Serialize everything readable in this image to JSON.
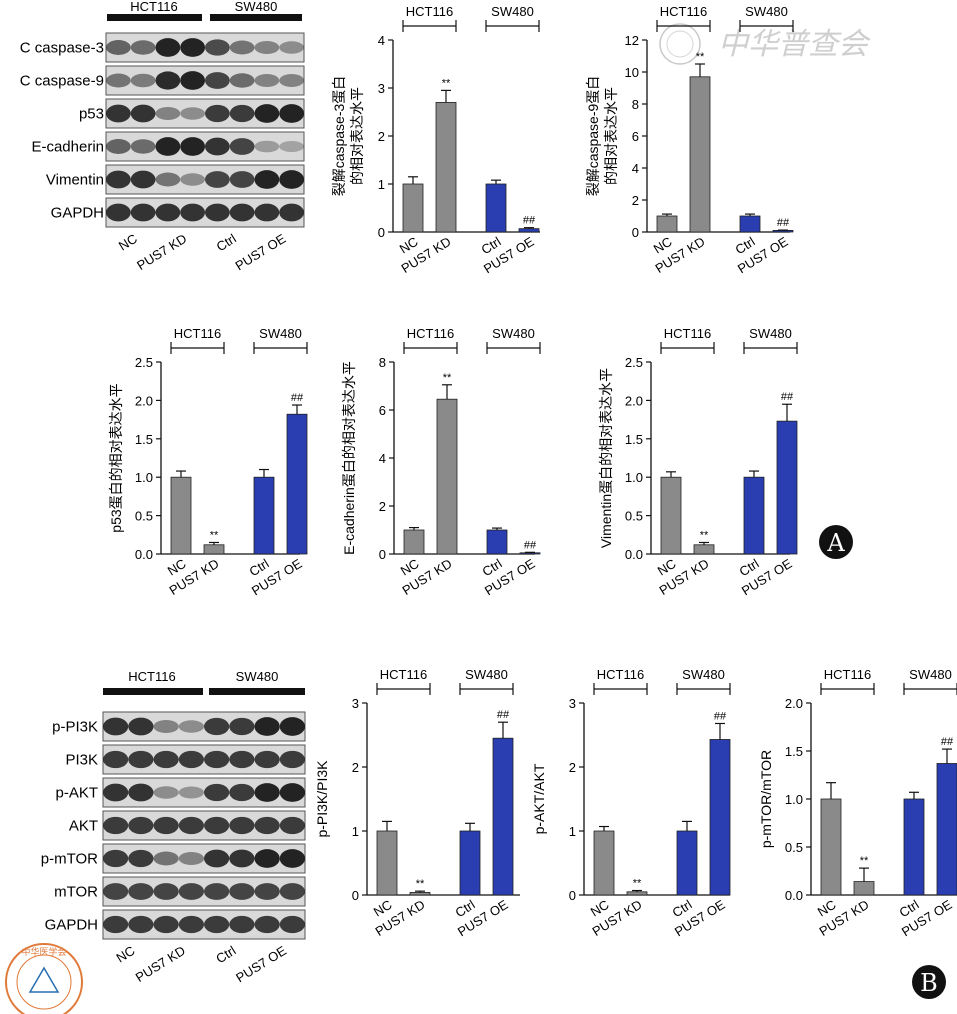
{
  "watermark": "中华普查会",
  "seal_text": "中华医学会",
  "panel_a": {
    "badge": "A",
    "blot": {
      "cell_lines": [
        "HCT116",
        "SW480"
      ],
      "rows": [
        "C caspase-3",
        "C caspase-9",
        "p53",
        "E-cadherin",
        "Vimentin",
        "GAPDH"
      ],
      "lane_labels": [
        "NC",
        "PUS7 KD",
        "Ctrl",
        "PUS7 OE"
      ]
    }
  },
  "panel_b": {
    "badge": "B",
    "blot": {
      "cell_lines": [
        "HCT116",
        "SW480"
      ],
      "rows": [
        "p-PI3K",
        "PI3K",
        "p-AKT",
        "AKT",
        "p-mTOR",
        "mTOR",
        "GAPDH"
      ],
      "lane_labels": [
        "NC",
        "PUS7 KD",
        "Ctrl",
        "PUS7 OE"
      ]
    }
  },
  "colors": {
    "control_bar": "#8a8a8a",
    "sw480_bar": "#2a3eb1"
  },
  "chart_data": [
    {
      "type": "bar",
      "ylabel": "裂解caspase-3蛋白\n的相对表达水平",
      "categories": [
        "NC",
        "PUS7 KD",
        "Ctrl",
        "PUS7 OE"
      ],
      "groups": [
        "HCT116",
        "SW480"
      ],
      "values": [
        1.0,
        2.7,
        1.0,
        0.07
      ],
      "errors": [
        0.15,
        0.25,
        0.08,
        0.02
      ],
      "significance": [
        "",
        "**",
        "",
        "##"
      ],
      "ylim": [
        0,
        4
      ],
      "yticks": [
        "0",
        "1",
        "2",
        "3",
        "4"
      ]
    },
    {
      "type": "bar",
      "ylabel": "裂解caspase-9蛋白\n的相对表达水平",
      "categories": [
        "NC",
        "PUS7 KD",
        "Ctrl",
        "PUS7 OE"
      ],
      "groups": [
        "HCT116",
        "SW480"
      ],
      "values": [
        1.0,
        9.7,
        1.0,
        0.1
      ],
      "errors": [
        0.12,
        0.8,
        0.12,
        0.02
      ],
      "significance": [
        "",
        "**",
        "",
        "##"
      ],
      "ylim": [
        0,
        12
      ],
      "yticks": [
        "0",
        "2",
        "4",
        "6",
        "8",
        "10",
        "12"
      ]
    },
    {
      "type": "bar",
      "ylabel": "p53蛋白的相对表达水平",
      "categories": [
        "NC",
        "PUS7 KD",
        "Ctrl",
        "PUS7 OE"
      ],
      "groups": [
        "HCT116",
        "SW480"
      ],
      "values": [
        1.0,
        0.12,
        1.0,
        1.82
      ],
      "errors": [
        0.08,
        0.03,
        0.1,
        0.12
      ],
      "significance": [
        "",
        "**",
        "",
        "##"
      ],
      "ylim": [
        0,
        2.5
      ],
      "yticks": [
        "0.0",
        "0.5",
        "1.0",
        "1.5",
        "2.0",
        "2.5"
      ]
    },
    {
      "type": "bar",
      "ylabel": "E-cadherin蛋白的相对表达水平",
      "categories": [
        "NC",
        "PUS7 KD",
        "Ctrl",
        "PUS7 OE"
      ],
      "groups": [
        "HCT116",
        "SW480"
      ],
      "values": [
        1.0,
        6.45,
        1.0,
        0.05
      ],
      "errors": [
        0.1,
        0.6,
        0.08,
        0.02
      ],
      "significance": [
        "",
        "**",
        "",
        "##"
      ],
      "ylim": [
        0,
        8
      ],
      "yticks": [
        "0",
        "2",
        "4",
        "6",
        "8"
      ]
    },
    {
      "type": "bar",
      "ylabel": "Vimentin蛋白的相对表达水平",
      "categories": [
        "NC",
        "PUS7 KD",
        "Ctrl",
        "PUS7 OE"
      ],
      "groups": [
        "HCT116",
        "SW480"
      ],
      "values": [
        1.0,
        0.12,
        1.0,
        1.73
      ],
      "errors": [
        0.07,
        0.03,
        0.08,
        0.22
      ],
      "significance": [
        "",
        "**",
        "",
        "##"
      ],
      "ylim": [
        0,
        2.5
      ],
      "yticks": [
        "0.0",
        "0.5",
        "1.0",
        "1.5",
        "2.0",
        "2.5"
      ]
    },
    {
      "type": "bar",
      "ylabel": "p-PI3K/PI3K",
      "categories": [
        "NC",
        "PUS7 KD",
        "Ctrl",
        "PUS7 OE"
      ],
      "groups": [
        "HCT116",
        "SW480"
      ],
      "values": [
        1.0,
        0.04,
        1.0,
        2.45
      ],
      "errors": [
        0.15,
        0.02,
        0.12,
        0.25
      ],
      "significance": [
        "",
        "**",
        "",
        "##"
      ],
      "ylim": [
        0,
        3
      ],
      "yticks": [
        "0",
        "1",
        "2",
        "3"
      ]
    },
    {
      "type": "bar",
      "ylabel": "p-AKT/AKT",
      "categories": [
        "NC",
        "PUS7 KD",
        "Ctrl",
        "PUS7 OE"
      ],
      "groups": [
        "HCT116",
        "SW480"
      ],
      "values": [
        1.0,
        0.05,
        1.0,
        2.43
      ],
      "errors": [
        0.07,
        0.02,
        0.15,
        0.25
      ],
      "significance": [
        "",
        "**",
        "",
        "##"
      ],
      "ylim": [
        0,
        3
      ],
      "yticks": [
        "0",
        "1",
        "2",
        "3"
      ]
    },
    {
      "type": "bar",
      "ylabel": "p-mTOR/mTOR",
      "categories": [
        "NC",
        "PUS7 KD",
        "Ctrl",
        "PUS7 OE"
      ],
      "groups": [
        "HCT116",
        "SW480"
      ],
      "values": [
        1.0,
        0.14,
        1.0,
        1.37
      ],
      "errors": [
        0.17,
        0.14,
        0.07,
        0.15
      ],
      "significance": [
        "",
        "**",
        "",
        "##"
      ],
      "ylim": [
        0,
        2.0
      ],
      "yticks": [
        "0.0",
        "0.5",
        "1.0",
        "1.5",
        "2.0"
      ]
    }
  ]
}
